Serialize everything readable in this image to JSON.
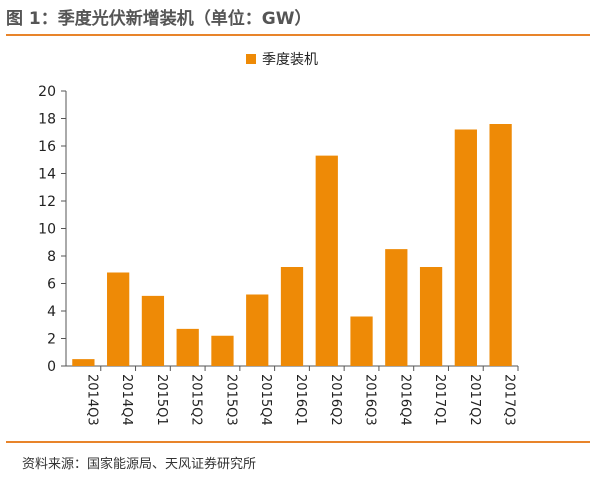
{
  "figure": {
    "title": "图 1：季度光伏新增装机（单位：GW）",
    "source": "资料来源：国家能源局、天风证券研究所"
  },
  "colors": {
    "bar": "#ee8a06",
    "rule": "#e8842a",
    "axis": "#555555"
  },
  "chart_data": {
    "type": "bar",
    "title": "",
    "xlabel": "",
    "ylabel": "",
    "categories": [
      "2014Q3",
      "2014Q4",
      "2015Q1",
      "2015Q2",
      "2015Q3",
      "2015Q4",
      "2016Q1",
      "2016Q2",
      "2016Q3",
      "2016Q4",
      "2017Q1",
      "2017Q2",
      "2017Q3"
    ],
    "series": [
      {
        "name": "季度装机",
        "values": [
          0.5,
          6.8,
          5.1,
          2.7,
          2.2,
          5.2,
          7.2,
          15.3,
          3.6,
          8.5,
          7.2,
          17.2,
          17.6
        ]
      }
    ],
    "ylim": [
      0,
      20
    ],
    "yticks": [
      0,
      2,
      4,
      6,
      8,
      10,
      12,
      14,
      16,
      18,
      20
    ],
    "grid": false,
    "legend_position": "top-center"
  }
}
